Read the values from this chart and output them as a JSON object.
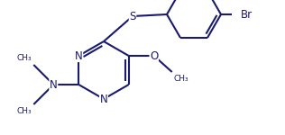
{
  "line_color": "#1a1a6e",
  "bg_color": "#ffffff",
  "lw": 1.5,
  "figsize": [
    3.16,
    1.5
  ],
  "dpi": 100,
  "xlim": [
    0,
    316
  ],
  "ylim": [
    0,
    150
  ]
}
